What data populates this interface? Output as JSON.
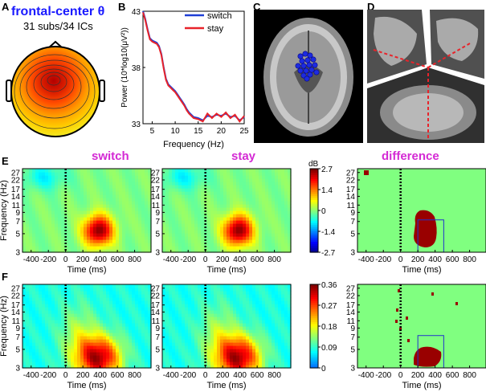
{
  "panels": {
    "A": {
      "label": "A",
      "title": "frontal-center θ",
      "subtitle": "31 subs/34 ICs"
    },
    "B": {
      "label": "B"
    },
    "C": {
      "label": "C"
    },
    "D": {
      "label": "D"
    },
    "E": {
      "label": "E"
    },
    "F": {
      "label": "F"
    }
  },
  "colors": {
    "switch": "#1f3fd6",
    "stay": "#e8232a",
    "heading": "#d42ad4",
    "title": "#1a1aff"
  },
  "row_headings": [
    "switch",
    "stay",
    "difference"
  ],
  "chart_data": [
    {
      "type": "line",
      "id": "B",
      "xlabel": "Frequency (Hz)",
      "ylabel": "Power (10*log10(μV²))",
      "xlim": [
        3,
        25
      ],
      "ylim": [
        33,
        43
      ],
      "xticks": [
        5,
        10,
        15,
        20,
        25
      ],
      "yticks": [
        33,
        38,
        43
      ],
      "legend": [
        "switch",
        "stay"
      ],
      "series": [
        {
          "name": "switch",
          "x": [
            3,
            3.5,
            4,
            4.5,
            5,
            5.5,
            6,
            6.5,
            7,
            7.5,
            8,
            8.5,
            9,
            9.5,
            10,
            10.5,
            11,
            11.5,
            12,
            12.5,
            13,
            14,
            15,
            16,
            17,
            18,
            19,
            20,
            21,
            22,
            23,
            24,
            25
          ],
          "values": [
            43,
            42.3,
            41.4,
            40.6,
            40.4,
            40.3,
            40.2,
            39.9,
            39.2,
            38.0,
            37.0,
            36.5,
            36.3,
            36.1,
            35.9,
            35.6,
            35.3,
            35.0,
            34.7,
            34.3,
            34.0,
            33.6,
            33.5,
            33.3,
            33.7,
            33.6,
            33.8,
            33.7,
            33.9,
            33.6,
            33.7,
            33.3,
            33.6
          ]
        },
        {
          "name": "stay",
          "x": [
            3,
            3.5,
            4,
            4.5,
            5,
            5.5,
            6,
            6.5,
            7,
            7.5,
            8,
            8.5,
            9,
            9.5,
            10,
            10.5,
            11,
            11.5,
            12,
            12.5,
            13,
            14,
            15,
            16,
            17,
            18,
            19,
            20,
            21,
            22,
            23,
            24,
            25
          ],
          "values": [
            42.9,
            42.2,
            41.3,
            40.5,
            40.3,
            40.2,
            40.1,
            39.8,
            39.1,
            37.9,
            36.9,
            36.4,
            36.2,
            36.0,
            35.8,
            35.5,
            35.2,
            34.9,
            34.6,
            34.2,
            33.9,
            33.5,
            33.4,
            33.2,
            33.9,
            33.5,
            33.9,
            33.6,
            34.0,
            33.5,
            33.8,
            33.2,
            33.7
          ]
        }
      ]
    },
    {
      "type": "heatmap",
      "id": "E",
      "xlabel": "Time (ms)",
      "ylabel": "Frequency (Hz)",
      "xticks": [
        -400,
        -200,
        0,
        200,
        400,
        600,
        800
      ],
      "yticks": [
        3,
        5,
        7,
        9,
        11,
        14,
        17,
        22,
        27
      ],
      "colorbar": {
        "unit": "dB",
        "ticks": [
          2.7,
          1.4,
          0,
          -1.4,
          -2.7
        ]
      },
      "panels": [
        "switch",
        "stay",
        "difference"
      ]
    },
    {
      "type": "heatmap",
      "id": "F",
      "xlabel": "Time (ms)",
      "ylabel": "Frequency (Hz)",
      "xticks": [
        -400,
        -200,
        0,
        200,
        400,
        600,
        800
      ],
      "yticks": [
        3,
        5,
        7,
        9,
        11,
        14,
        17,
        22,
        27
      ],
      "colorbar": {
        "unit": "",
        "ticks": [
          0.36,
          0.27,
          0.18,
          0.09,
          0
        ]
      },
      "panels": [
        "switch",
        "stay",
        "difference"
      ]
    }
  ]
}
